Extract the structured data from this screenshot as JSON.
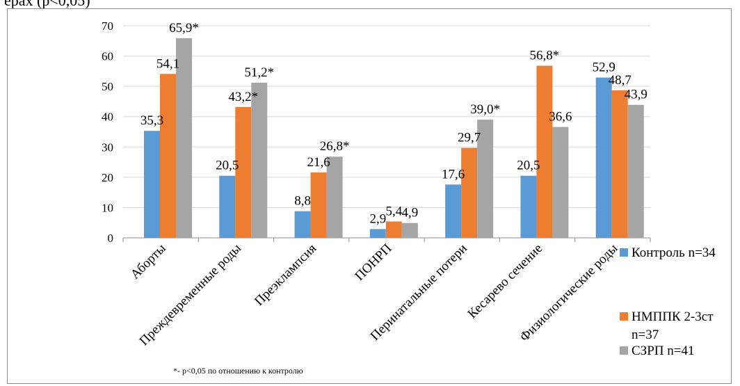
{
  "header_text": "ерах (р<0,05)",
  "chart_data": {
    "type": "bar",
    "categories": [
      "Аборты",
      "Преждевременные роды",
      "Преэклампсия",
      "ПОНРП",
      "Перинатальные потери",
      "Кесарево сечение",
      "Физиологические роды"
    ],
    "series": [
      {
        "name": "Контроль n=34",
        "color": "#5b9bd5",
        "values": [
          35.3,
          20.5,
          8.8,
          2.9,
          17.6,
          20.5,
          52.9
        ],
        "labels": [
          "35,3",
          "20,5",
          "8,8",
          "2,9",
          "17,6",
          "20,5",
          "52,9"
        ]
      },
      {
        "name": "НМППК 2-3ст n=37",
        "name_lines": [
          "НМППК 2-3ст",
          "n=37"
        ],
        "color": "#ed7d31",
        "values": [
          54.1,
          43.2,
          21.6,
          5.4,
          29.7,
          56.8,
          48.7
        ],
        "labels": [
          "54,1",
          "43,2*",
          "21,6",
          "5,4",
          "29,7",
          "56,8*",
          "48,7"
        ]
      },
      {
        "name": "СЗРП n=41",
        "color": "#a5a5a5",
        "values": [
          65.9,
          51.2,
          26.8,
          4.9,
          39.0,
          36.6,
          43.9
        ],
        "labels": [
          "65,9*",
          "51,2*",
          "26,8*",
          "4,9",
          "39,0*",
          "36,6",
          "43,9"
        ]
      }
    ],
    "ylim": [
      0,
      70
    ],
    "yticks": [
      0,
      10,
      20,
      30,
      40,
      50,
      60,
      70
    ],
    "grid": true,
    "legend_position": "right",
    "footnote": "*- p<0,05 по отношению к контролю"
  }
}
